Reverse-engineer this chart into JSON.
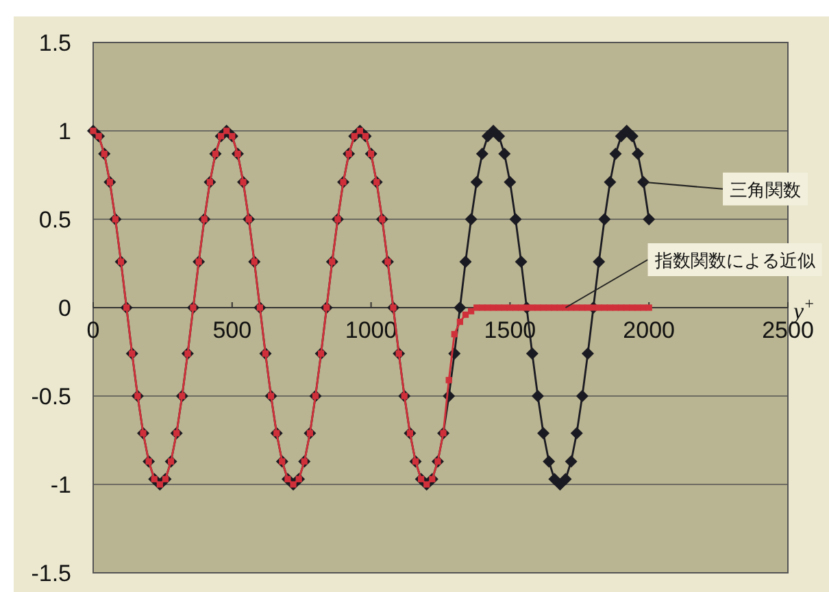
{
  "chart_data": {
    "type": "line",
    "xlabel": "y$^{+}$",
    "xlim": [
      0,
      2500
    ],
    "xticks": [
      0,
      500,
      1000,
      1500,
      2000,
      2500
    ],
    "ylim": [
      -1.5,
      1.5
    ],
    "yticks": [
      -1.5,
      -1,
      -0.5,
      0,
      0.5,
      1,
      1.5
    ],
    "grid": "y",
    "legend": "right",
    "line_style": "solid",
    "series": [
      {
        "name": "三角関数",
        "color": "#1a1a22",
        "marker": "diamond",
        "x": [
          0,
          20,
          40,
          60,
          80,
          100,
          120,
          140,
          160,
          180,
          200,
          220,
          240,
          260,
          280,
          300,
          320,
          340,
          360,
          380,
          400,
          420,
          440,
          460,
          480,
          500,
          520,
          540,
          560,
          580,
          600,
          620,
          640,
          660,
          680,
          700,
          720,
          740,
          760,
          780,
          800,
          820,
          840,
          860,
          880,
          900,
          920,
          940,
          960,
          980,
          1000,
          1020,
          1040,
          1060,
          1080,
          1100,
          1120,
          1140,
          1160,
          1180,
          1200,
          1220,
          1240,
          1260,
          1280,
          1300,
          1320,
          1340,
          1360,
          1380,
          1400,
          1420,
          1440,
          1460,
          1480,
          1500,
          1520,
          1540,
          1560,
          1580,
          1600,
          1620,
          1640,
          1660,
          1680,
          1700,
          1720,
          1740,
          1760,
          1780,
          1800,
          1820,
          1840,
          1860,
          1880,
          1900,
          1920,
          1940,
          1960,
          1980,
          2000
        ],
        "values": [
          1,
          0.97,
          0.87,
          0.71,
          0.5,
          0.26,
          0,
          -0.26,
          -0.5,
          -0.71,
          -0.87,
          -0.97,
          -1,
          -0.97,
          -0.87,
          -0.71,
          -0.5,
          -0.26,
          0,
          0.26,
          0.5,
          0.71,
          0.87,
          0.97,
          1,
          0.97,
          0.87,
          0.71,
          0.5,
          0.26,
          0,
          -0.26,
          -0.5,
          -0.71,
          -0.87,
          -0.97,
          -1,
          -0.97,
          -0.87,
          -0.71,
          -0.5,
          -0.26,
          0,
          0.26,
          0.5,
          0.71,
          0.87,
          0.97,
          1,
          0.97,
          0.87,
          0.71,
          0.5,
          0.26,
          0,
          -0.26,
          -0.5,
          -0.71,
          -0.87,
          -0.97,
          -1,
          -0.97,
          -0.87,
          -0.71,
          -0.5,
          -0.26,
          0,
          0.26,
          0.5,
          0.71,
          0.87,
          0.97,
          1,
          0.97,
          0.87,
          0.71,
          0.5,
          0.26,
          0,
          -0.26,
          -0.5,
          -0.71,
          -0.87,
          -0.97,
          -1,
          -0.97,
          -0.87,
          -0.71,
          -0.5,
          -0.26,
          0,
          0.26,
          0.5,
          0.71,
          0.87,
          0.97,
          1,
          0.97,
          0.87,
          0.71,
          0.5
        ]
      },
      {
        "name": "指数関数による近似",
        "color": "#d0303a",
        "marker": "square",
        "x": [
          0,
          20,
          40,
          60,
          80,
          100,
          120,
          140,
          160,
          180,
          200,
          220,
          240,
          260,
          280,
          300,
          320,
          340,
          360,
          380,
          400,
          420,
          440,
          460,
          480,
          500,
          520,
          540,
          560,
          580,
          600,
          620,
          640,
          660,
          680,
          700,
          720,
          740,
          760,
          780,
          800,
          820,
          840,
          860,
          880,
          900,
          920,
          940,
          960,
          980,
          1000,
          1020,
          1040,
          1060,
          1080,
          1100,
          1120,
          1140,
          1160,
          1180,
          1200,
          1220,
          1240,
          1260,
          1280,
          1300,
          1320,
          1340,
          1360,
          1380,
          1400,
          1420,
          1440,
          1460,
          1480,
          1500,
          1520,
          1540,
          1560,
          1580,
          1600,
          1620,
          1640,
          1660,
          1680,
          1700,
          1720,
          1740,
          1760,
          1780,
          1800,
          1820,
          1840,
          1860,
          1880,
          1900,
          1920,
          1940,
          1960,
          1980,
          2000
        ],
        "values": [
          1,
          0.97,
          0.87,
          0.71,
          0.5,
          0.26,
          0,
          -0.26,
          -0.5,
          -0.71,
          -0.87,
          -0.97,
          -1,
          -0.97,
          -0.87,
          -0.71,
          -0.5,
          -0.26,
          0,
          0.26,
          0.5,
          0.71,
          0.87,
          0.97,
          1,
          0.97,
          0.87,
          0.71,
          0.5,
          0.26,
          0,
          -0.26,
          -0.5,
          -0.71,
          -0.87,
          -0.97,
          -1,
          -0.97,
          -0.87,
          -0.71,
          -0.5,
          -0.26,
          0,
          0.26,
          0.5,
          0.71,
          0.87,
          0.97,
          1,
          0.97,
          0.87,
          0.71,
          0.5,
          0.26,
          0,
          -0.26,
          -0.5,
          -0.71,
          -0.87,
          -0.97,
          -1,
          -0.97,
          -0.87,
          -0.71,
          -0.41,
          -0.15,
          -0.08,
          -0.04,
          -0.02,
          0,
          0,
          0,
          0,
          0,
          0,
          0,
          0,
          0,
          0,
          0,
          0,
          0,
          0,
          0,
          0,
          0,
          0,
          0,
          0,
          0,
          0,
          0,
          0,
          0,
          0,
          0,
          0,
          0,
          0,
          0,
          0
        ]
      }
    ]
  }
}
